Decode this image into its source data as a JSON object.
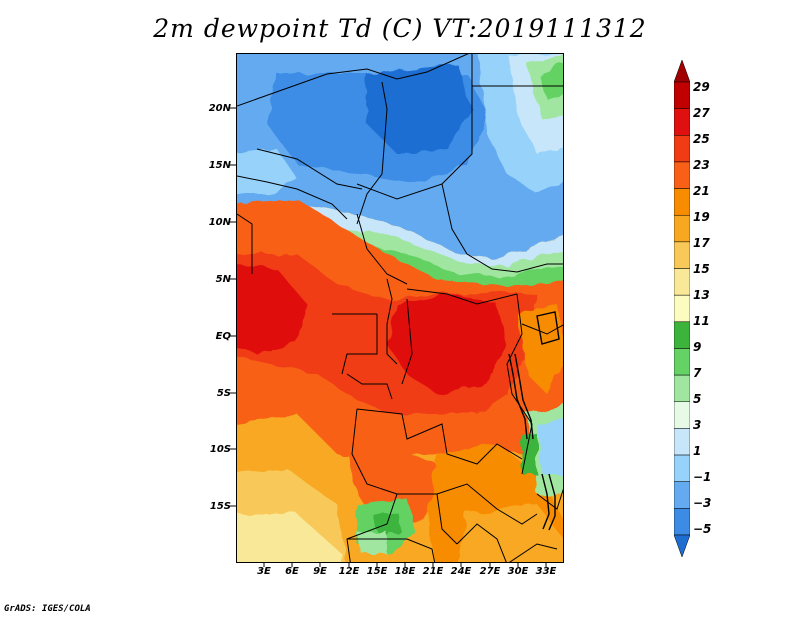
{
  "title": "2m dewpoint Td (C) VT:2019111312",
  "credit": "GrADS: IGES/COLA",
  "map": {
    "variable": "2m dewpoint",
    "units": "C",
    "valid_time": "2019111312",
    "lat_labels": [
      "20N",
      "15N",
      "10N",
      "5N",
      "EQ",
      "5S",
      "10S",
      "15S"
    ],
    "lon_labels": [
      "3E",
      "6E",
      "9E",
      "12E",
      "15E",
      "18E",
      "21E",
      "24E",
      "27E",
      "30E",
      "33E"
    ]
  },
  "colorbar": {
    "labels": [
      "29",
      "27",
      "25",
      "23",
      "21",
      "19",
      "17",
      "15",
      "13",
      "11",
      "9",
      "7",
      "5",
      "3",
      "1",
      "−1",
      "−3",
      "−5"
    ],
    "colors": [
      "#a00000",
      "#c00000",
      "#e01010",
      "#f03c14",
      "#f86018",
      "#f88c00",
      "#f8a820",
      "#f8c858",
      "#f8e898",
      "#fcfcc0",
      "#3cb43c",
      "#64d264",
      "#a0e6a0",
      "#e6fae6",
      "#c8e6fa",
      "#96d2fa",
      "#64aaf0",
      "#3c8ce6",
      "#1e6ed2"
    ]
  }
}
